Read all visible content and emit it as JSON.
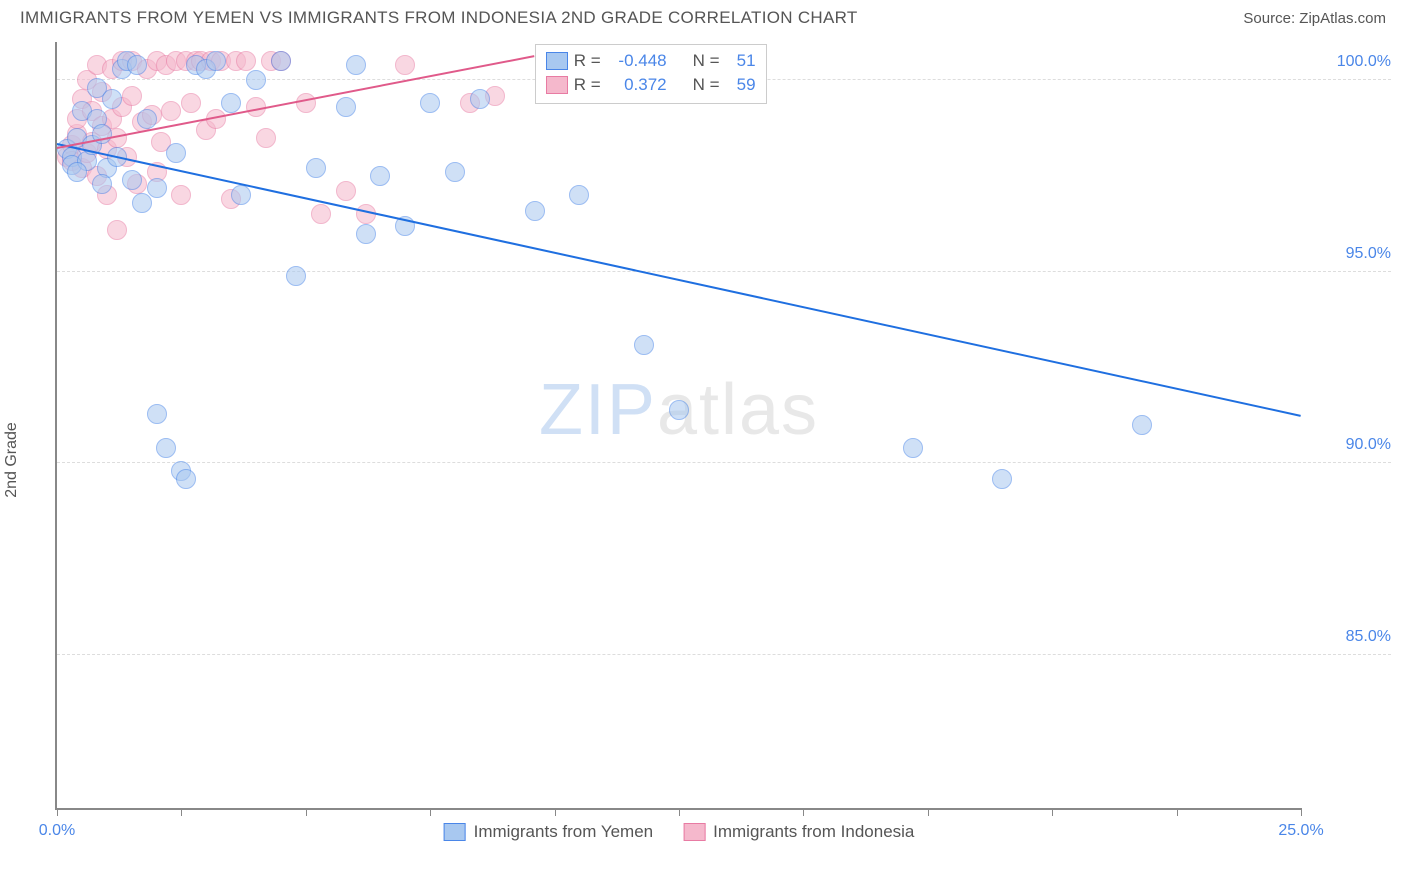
{
  "title": "IMMIGRANTS FROM YEMEN VS IMMIGRANTS FROM INDONESIA 2ND GRADE CORRELATION CHART",
  "source_prefix": "Source: ",
  "source_name": "ZipAtlas.com",
  "yaxis_label": "2nd Grade",
  "watermark_a": "ZIP",
  "watermark_b": "atlas",
  "chart": {
    "type": "scatter",
    "background_color": "#ffffff",
    "grid_color": "#dddddd",
    "axis_color": "#888888",
    "xlim": [
      0,
      25
    ],
    "ylim": [
      81,
      101
    ],
    "xticks": [
      0,
      2.5,
      5,
      7.5,
      10,
      12.5,
      15,
      17.5,
      20,
      22.5,
      25
    ],
    "xtick_labels": {
      "0": "0.0%",
      "25": "25.0%"
    },
    "yticks": [
      85,
      90,
      95,
      100
    ],
    "ytick_labels": [
      "85.0%",
      "90.0%",
      "95.0%",
      "100.0%"
    ],
    "marker_radius": 10,
    "marker_opacity": 0.55,
    "marker_border_width": 1.5,
    "series": [
      {
        "key": "yemen",
        "label": "Immigrants from Yemen",
        "fill": "#a8c8f0",
        "stroke": "#4a86e8",
        "r_value": "-0.448",
        "n_value": "51",
        "trend": {
          "x1": 0,
          "y1": 98.3,
          "x2": 25,
          "y2": 91.2,
          "color": "#1f6fe0",
          "width": 2
        },
        "points": [
          [
            0.2,
            98.2
          ],
          [
            0.3,
            98.0
          ],
          [
            0.3,
            97.8
          ],
          [
            0.4,
            98.5
          ],
          [
            0.5,
            99.2
          ],
          [
            0.6,
            97.9
          ],
          [
            0.7,
            98.3
          ],
          [
            0.8,
            99.8
          ],
          [
            0.8,
            99.0
          ],
          [
            0.9,
            98.6
          ],
          [
            1.0,
            97.7
          ],
          [
            1.1,
            99.5
          ],
          [
            1.2,
            98.0
          ],
          [
            1.3,
            100.3
          ],
          [
            1.4,
            100.5
          ],
          [
            1.5,
            97.4
          ],
          [
            1.6,
            100.4
          ],
          [
            1.7,
            96.8
          ],
          [
            1.8,
            99.0
          ],
          [
            2.0,
            97.2
          ],
          [
            2.0,
            91.3
          ],
          [
            2.2,
            90.4
          ],
          [
            2.4,
            98.1
          ],
          [
            2.5,
            89.8
          ],
          [
            2.6,
            89.6
          ],
          [
            2.8,
            100.4
          ],
          [
            3.0,
            100.3
          ],
          [
            3.2,
            100.5
          ],
          [
            3.5,
            99.4
          ],
          [
            3.7,
            97.0
          ],
          [
            4.0,
            100.0
          ],
          [
            4.5,
            100.5
          ],
          [
            4.8,
            94.9
          ],
          [
            5.2,
            97.7
          ],
          [
            5.8,
            99.3
          ],
          [
            6.0,
            100.4
          ],
          [
            6.2,
            96.0
          ],
          [
            6.5,
            97.5
          ],
          [
            7.0,
            96.2
          ],
          [
            7.5,
            99.4
          ],
          [
            8.0,
            97.6
          ],
          [
            8.5,
            99.5
          ],
          [
            9.6,
            96.6
          ],
          [
            10.5,
            97.0
          ],
          [
            11.8,
            93.1
          ],
          [
            12.5,
            91.4
          ],
          [
            17.2,
            90.4
          ],
          [
            19.0,
            89.6
          ],
          [
            21.8,
            91.0
          ],
          [
            0.4,
            97.6
          ],
          [
            0.9,
            97.3
          ]
        ]
      },
      {
        "key": "indonesia",
        "label": "Immigrants from Indonesia",
        "fill": "#f5b8cc",
        "stroke": "#e87ba3",
        "r_value": "0.372",
        "n_value": "59",
        "trend": {
          "x1": 0,
          "y1": 98.2,
          "x2": 9.6,
          "y2": 100.6,
          "color": "#e05a8a",
          "width": 2
        },
        "points": [
          [
            0.2,
            98.0
          ],
          [
            0.3,
            98.3
          ],
          [
            0.3,
            97.9
          ],
          [
            0.4,
            98.6
          ],
          [
            0.4,
            99.0
          ],
          [
            0.5,
            97.7
          ],
          [
            0.5,
            99.5
          ],
          [
            0.6,
            98.1
          ],
          [
            0.6,
            100.0
          ],
          [
            0.7,
            98.4
          ],
          [
            0.7,
            99.2
          ],
          [
            0.8,
            97.5
          ],
          [
            0.8,
            100.4
          ],
          [
            0.9,
            98.8
          ],
          [
            0.9,
            99.7
          ],
          [
            1.0,
            98.2
          ],
          [
            1.0,
            97.0
          ],
          [
            1.1,
            99.0
          ],
          [
            1.1,
            100.3
          ],
          [
            1.2,
            98.5
          ],
          [
            1.2,
            96.1
          ],
          [
            1.3,
            99.3
          ],
          [
            1.3,
            100.5
          ],
          [
            1.4,
            98.0
          ],
          [
            1.5,
            99.6
          ],
          [
            1.5,
            100.5
          ],
          [
            1.6,
            97.3
          ],
          [
            1.7,
            98.9
          ],
          [
            1.8,
            100.3
          ],
          [
            1.9,
            99.1
          ],
          [
            2.0,
            97.6
          ],
          [
            2.0,
            100.5
          ],
          [
            2.1,
            98.4
          ],
          [
            2.2,
            100.4
          ],
          [
            2.3,
            99.2
          ],
          [
            2.4,
            100.5
          ],
          [
            2.5,
            97.0
          ],
          [
            2.6,
            100.5
          ],
          [
            2.7,
            99.4
          ],
          [
            2.8,
            100.5
          ],
          [
            2.9,
            100.5
          ],
          [
            3.0,
            98.7
          ],
          [
            3.1,
            100.5
          ],
          [
            3.2,
            99.0
          ],
          [
            3.3,
            100.5
          ],
          [
            3.5,
            96.9
          ],
          [
            3.6,
            100.5
          ],
          [
            3.8,
            100.5
          ],
          [
            4.0,
            99.3
          ],
          [
            4.2,
            98.5
          ],
          [
            4.3,
            100.5
          ],
          [
            4.5,
            100.5
          ],
          [
            5.0,
            99.4
          ],
          [
            5.3,
            96.5
          ],
          [
            5.8,
            97.1
          ],
          [
            6.2,
            96.5
          ],
          [
            7.0,
            100.4
          ],
          [
            8.3,
            99.4
          ],
          [
            8.8,
            99.6
          ]
        ]
      }
    ]
  },
  "legend_box": {
    "bg": "#ffffff",
    "border": "#cccccc",
    "r_label": "R = ",
    "n_label": "N = "
  },
  "fonts": {
    "title_size": 17,
    "axis_label_size": 16,
    "tick_label_size": 16,
    "legend_size": 17,
    "tick_label_color": "#4a86e8",
    "text_color": "#555555"
  }
}
